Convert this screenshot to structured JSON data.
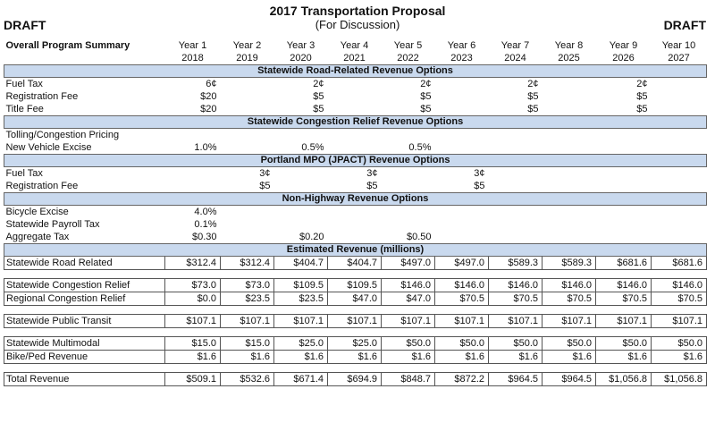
{
  "title": "2017 Transportation Proposal",
  "subtitle": "(For Discussion)",
  "draft_label": "DRAFT",
  "summary_label": "Overall Program Summary",
  "years": [
    {
      "label": "Year 1",
      "year": "2018"
    },
    {
      "label": "Year 2",
      "year": "2019"
    },
    {
      "label": "Year 3",
      "year": "2020"
    },
    {
      "label": "Year 4",
      "year": "2021"
    },
    {
      "label": "Year 5",
      "year": "2022"
    },
    {
      "label": "Year 6",
      "year": "2023"
    },
    {
      "label": "Year 7",
      "year": "2024"
    },
    {
      "label": "Year 8",
      "year": "2025"
    },
    {
      "label": "Year 9",
      "year": "2026"
    },
    {
      "label": "Year 10",
      "year": "2027"
    }
  ],
  "section1": {
    "title": "Statewide Road-Related Revenue Options",
    "rows": [
      {
        "label": "Fuel Tax",
        "values": [
          "6¢",
          "",
          "2¢",
          "",
          "2¢",
          "",
          "2¢",
          "",
          "2¢",
          ""
        ]
      },
      {
        "label": "Registration Fee",
        "values": [
          "$20",
          "",
          "$5",
          "",
          "$5",
          "",
          "$5",
          "",
          "$5",
          ""
        ]
      },
      {
        "label": "Title Fee",
        "values": [
          "$20",
          "",
          "$5",
          "",
          "$5",
          "",
          "$5",
          "",
          "$5",
          ""
        ]
      }
    ]
  },
  "section2": {
    "title": "Statewide Congestion Relief Revenue Options",
    "rows": [
      {
        "label": "Tolling/Congestion Pricing",
        "values": [
          "",
          "",
          "",
          "",
          "",
          "",
          "",
          "",
          "",
          ""
        ]
      },
      {
        "label": "New Vehicle Excise",
        "values": [
          "1.0%",
          "",
          "0.5%",
          "",
          "0.5%",
          "",
          "",
          "",
          "",
          ""
        ]
      }
    ]
  },
  "section3": {
    "title": "Portland MPO (JPACT) Revenue Options",
    "rows": [
      {
        "label": "Fuel Tax",
        "values": [
          "",
          "3¢",
          "",
          "3¢",
          "",
          "3¢",
          "",
          "",
          "",
          ""
        ]
      },
      {
        "label": "Registration Fee",
        "values": [
          "",
          "$5",
          "",
          "$5",
          "",
          "$5",
          "",
          "",
          "",
          ""
        ]
      }
    ]
  },
  "section4": {
    "title": "Non-Highway Revenue Options",
    "rows": [
      {
        "label": "Bicycle Excise",
        "values": [
          "4.0%",
          "",
          "",
          "",
          "",
          "",
          "",
          "",
          "",
          ""
        ]
      },
      {
        "label": "Statewide Payroll Tax",
        "values": [
          "0.1%",
          "",
          "",
          "",
          "",
          "",
          "",
          "",
          "",
          ""
        ]
      },
      {
        "label": "Aggregate Tax",
        "values": [
          "$0.30",
          "",
          "$0.20",
          "",
          "$0.50",
          "",
          "",
          "",
          "",
          ""
        ]
      }
    ]
  },
  "section5": {
    "title": "Estimated Revenue (millions)",
    "groups": [
      [
        {
          "label": "Statewide Road Related",
          "values": [
            "$312.4",
            "$312.4",
            "$404.7",
            "$404.7",
            "$497.0",
            "$497.0",
            "$589.3",
            "$589.3",
            "$681.6",
            "$681.6"
          ]
        }
      ],
      [
        {
          "label": "Statewide Congestion Relief",
          "values": [
            "$73.0",
            "$73.0",
            "$109.5",
            "$109.5",
            "$146.0",
            "$146.0",
            "$146.0",
            "$146.0",
            "$146.0",
            "$146.0"
          ]
        },
        {
          "label": "Regional Congestion Relief",
          "values": [
            "$0.0",
            "$23.5",
            "$23.5",
            "$47.0",
            "$47.0",
            "$70.5",
            "$70.5",
            "$70.5",
            "$70.5",
            "$70.5"
          ]
        }
      ],
      [
        {
          "label": "Statewide Public Transit",
          "values": [
            "$107.1",
            "$107.1",
            "$107.1",
            "$107.1",
            "$107.1",
            "$107.1",
            "$107.1",
            "$107.1",
            "$107.1",
            "$107.1"
          ]
        }
      ],
      [
        {
          "label": "Statewide Multimodal",
          "values": [
            "$15.0",
            "$15.0",
            "$25.0",
            "$25.0",
            "$50.0",
            "$50.0",
            "$50.0",
            "$50.0",
            "$50.0",
            "$50.0"
          ]
        },
        {
          "label": "Bike/Ped Revenue",
          "values": [
            "$1.6",
            "$1.6",
            "$1.6",
            "$1.6",
            "$1.6",
            "$1.6",
            "$1.6",
            "$1.6",
            "$1.6",
            "$1.6"
          ]
        }
      ],
      [
        {
          "label": "Total Revenue",
          "values": [
            "$509.1",
            "$532.6",
            "$671.4",
            "$694.9",
            "$848.7",
            "$872.2",
            "$964.5",
            "$964.5",
            "$1,056.8",
            "$1,056.8"
          ]
        }
      ]
    ]
  }
}
